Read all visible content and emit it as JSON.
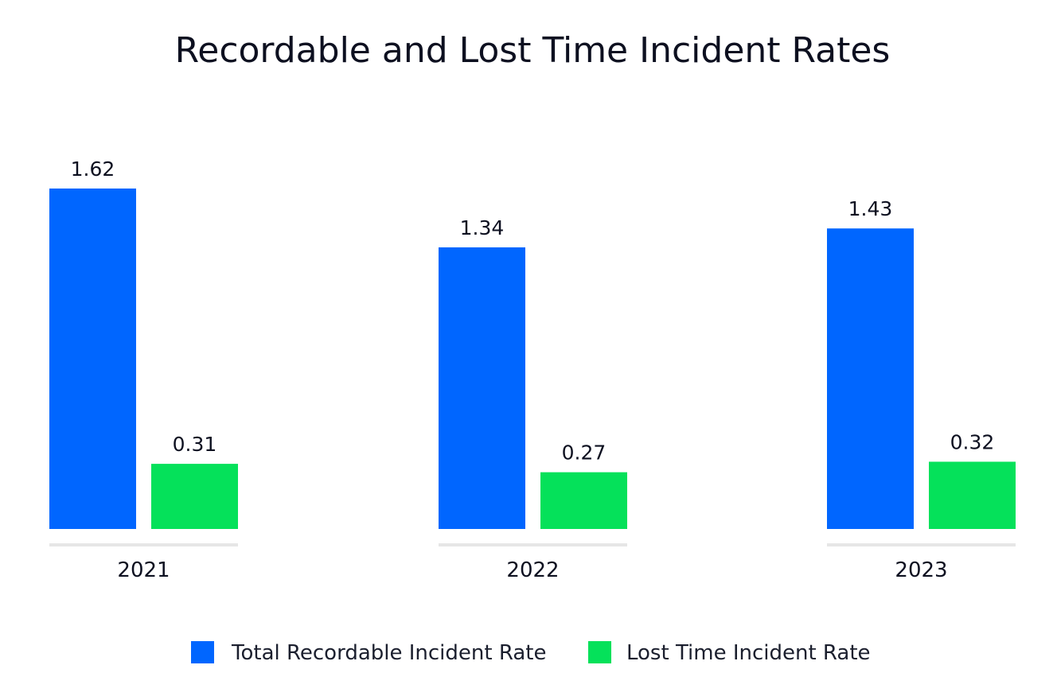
{
  "chart_data": {
    "type": "bar",
    "title": "Recordable and Lost Time Incident Rates",
    "xlabel": "",
    "ylabel": "",
    "categories": [
      "2021",
      "2022",
      "2023"
    ],
    "series": [
      {
        "name": "Total Recordable Incident Rate",
        "values": [
          1.62,
          1.34,
          1.43
        ],
        "labels": [
          "1.62",
          "1.34",
          "1.43"
        ],
        "color": "#0066ff"
      },
      {
        "name": "Lost Time Incident Rate",
        "values": [
          0.31,
          0.27,
          0.32
        ],
        "labels": [
          "0.31",
          "0.27",
          "0.32"
        ],
        "color": "#05e15a"
      }
    ],
    "ylim": [
      0,
      1.62
    ],
    "grid": false,
    "legend_position": "bottom-center",
    "axis_line_color": "#e6e6e6"
  }
}
